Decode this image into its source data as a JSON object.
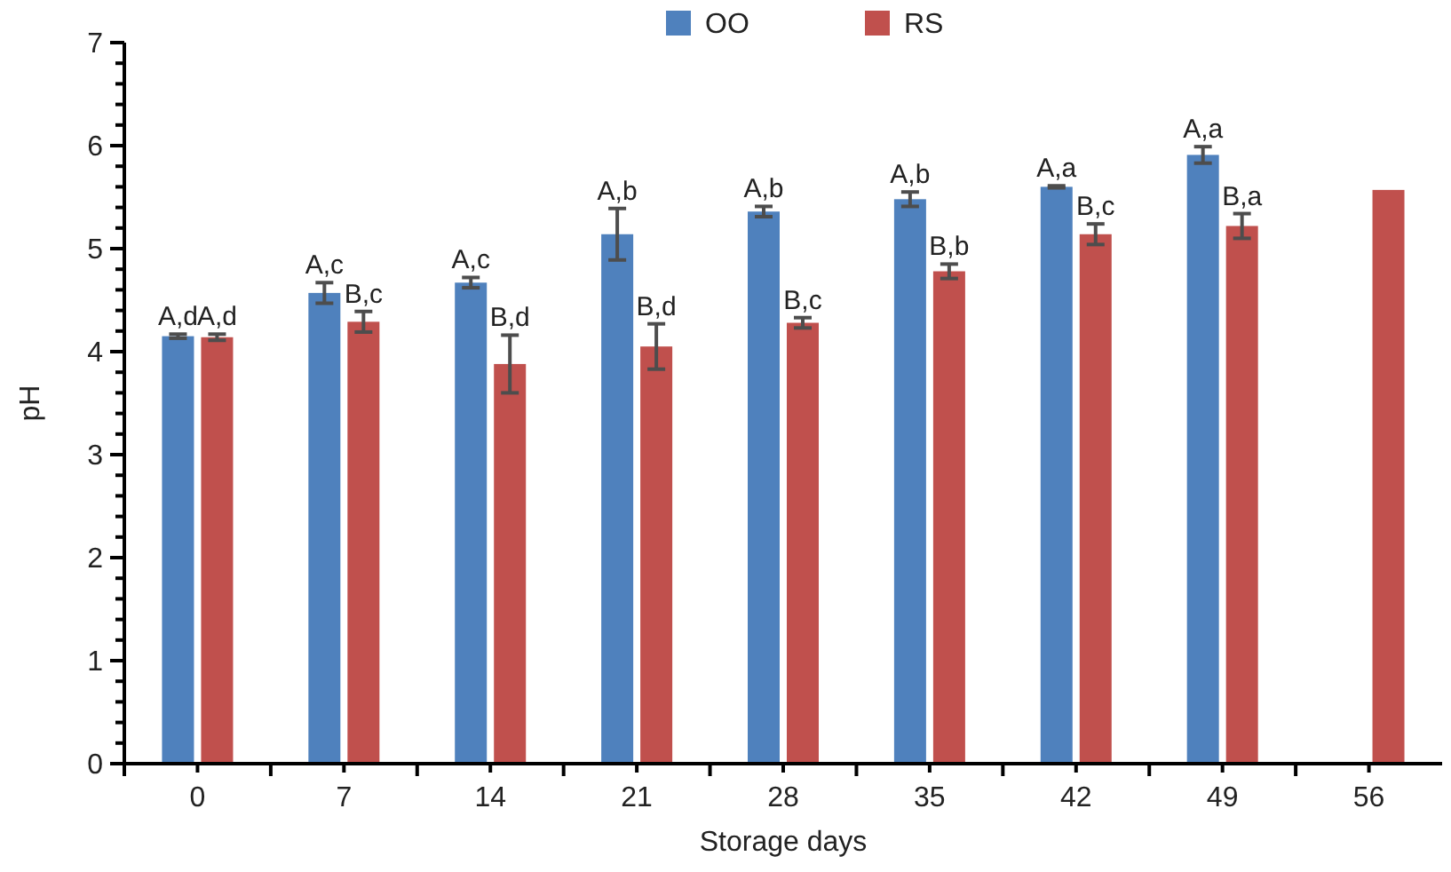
{
  "chart_data": {
    "type": "bar",
    "xlabel": "Storage days",
    "ylabel": "pH",
    "categories": [
      "0",
      "7",
      "14",
      "21",
      "28",
      "35",
      "42",
      "49",
      "56"
    ],
    "series": [
      {
        "name": "OO",
        "color": "#4f81bd",
        "values": [
          4.15,
          4.57,
          4.67,
          5.14,
          5.36,
          5.48,
          5.6,
          5.91,
          null
        ],
        "errors": [
          0.02,
          0.1,
          0.05,
          0.25,
          0.05,
          0.07,
          0.01,
          0.08,
          null
        ],
        "value_labels": [
          "A,d",
          "A,c",
          "A,c",
          "A,b",
          "A,b",
          "A,b",
          "A,a",
          "A,a",
          null
        ]
      },
      {
        "name": "RS",
        "color": "#c0504d",
        "values": [
          4.14,
          4.29,
          3.88,
          4.05,
          4.28,
          4.78,
          5.14,
          5.22,
          5.57
        ],
        "errors": [
          0.03,
          0.1,
          0.28,
          0.22,
          0.05,
          0.07,
          0.1,
          0.12,
          null
        ],
        "value_labels": [
          "A,d",
          "B,c",
          "B,d",
          "B,d",
          "B,c",
          "B,b",
          "B,c",
          "B,a",
          null
        ]
      }
    ],
    "ylim": [
      0,
      7
    ],
    "yticks": [
      0,
      {
        "value": 0.2,
        "label": null
      },
      {
        "value": 0.4,
        "label": null
      },
      {
        "value": 0.6,
        "label": null
      },
      {
        "value": 0.8,
        "label": null
      },
      1,
      {
        "value": 1.2,
        "label": null
      },
      {
        "value": 1.4,
        "label": null
      },
      {
        "value": 1.6,
        "label": null
      },
      {
        "value": 1.8,
        "label": null
      },
      2,
      {
        "value": 2.2,
        "label": null
      },
      {
        "value": 2.4,
        "label": null
      },
      {
        "value": 2.6,
        "label": null
      },
      {
        "value": 2.8,
        "label": null
      },
      3,
      {
        "value": 3.2,
        "label": null
      },
      {
        "value": 3.4,
        "label": null
      },
      {
        "value": 3.6,
        "label": null
      },
      {
        "value": 3.8,
        "label": null
      },
      4,
      {
        "value": 4.2,
        "label": null
      },
      {
        "value": 4.4,
        "label": null
      },
      {
        "value": 4.6,
        "label": null
      },
      {
        "value": 4.8,
        "label": null
      },
      5,
      {
        "value": 5.2,
        "label": null
      },
      {
        "value": 5.4,
        "label": null
      },
      {
        "value": 5.6,
        "label": null
      },
      {
        "value": 5.8,
        "label": null
      },
      6,
      {
        "value": 6.2,
        "label": null
      },
      {
        "value": 6.4,
        "label": null
      },
      {
        "value": 6.6,
        "label": null
      },
      {
        "value": 6.8,
        "label": null
      },
      7
    ],
    "legend": "top",
    "grid": false
  }
}
